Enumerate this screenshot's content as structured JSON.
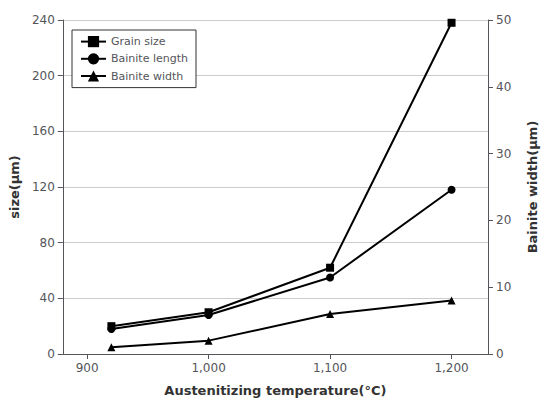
{
  "chart_data": {
    "type": "line",
    "x": [
      920,
      1000,
      1100,
      1200
    ],
    "series": [
      {
        "name": "Grain size",
        "color": "#000000",
        "marker": "square",
        "values": [
          20,
          30,
          62,
          238
        ]
      },
      {
        "name": "Bainite length",
        "color": "#000000",
        "marker": "circle",
        "values": [
          18,
          28,
          55,
          118
        ]
      },
      {
        "name": "Bainite width",
        "color": "#000000",
        "marker": "triangle",
        "axis": "y2",
        "values": [
          1,
          2,
          6,
          8
        ]
      }
    ],
    "xlabel": "Austenitizing temperature(°C)",
    "ylabel": "size(μm)",
    "y2label": "Bainite width(μm)",
    "xlim": [
      880,
      1230
    ],
    "xticks": [
      900,
      1000,
      1100,
      1200
    ],
    "ylim": [
      0,
      240
    ],
    "yticks": [
      0,
      40,
      80,
      120,
      160,
      200,
      240
    ],
    "y2lim": [
      0,
      50
    ],
    "y2ticks": [
      0,
      10,
      20,
      30,
      40,
      50
    ],
    "grid": true,
    "legend": "upper left"
  }
}
